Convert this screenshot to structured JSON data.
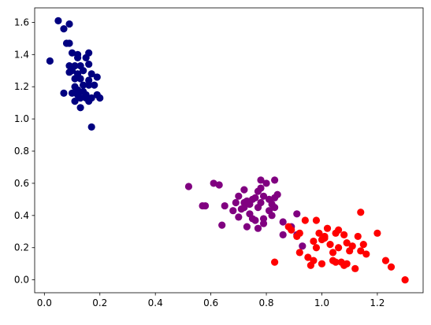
{
  "chart_data": {
    "type": "scatter",
    "title": "",
    "xlabel": "",
    "ylabel": "",
    "xlim": [
      -0.035,
      1.365
    ],
    "ylim": [
      -0.08,
      1.69
    ],
    "x_ticks": [
      0.0,
      0.2,
      0.4,
      0.6,
      0.8,
      1.0,
      1.2
    ],
    "x_tick_labels": [
      "0.0",
      "0.2",
      "0.4",
      "0.6",
      "0.8",
      "1.0",
      "1.2"
    ],
    "y_ticks": [
      0.0,
      0.2,
      0.4,
      0.6,
      0.8,
      1.0,
      1.2,
      1.4,
      1.6
    ],
    "y_tick_labels": [
      "0.0",
      "0.2",
      "0.4",
      "0.6",
      "0.8",
      "1.0",
      "1.2",
      "1.4",
      "1.6"
    ],
    "grid": false,
    "legend": "none",
    "series": [
      {
        "color": "#000080",
        "points": [
          [
            0.05,
            1.61
          ],
          [
            0.09,
            1.59
          ],
          [
            0.07,
            1.56
          ],
          [
            0.08,
            1.47
          ],
          [
            0.09,
            1.47
          ],
          [
            0.02,
            1.36
          ],
          [
            0.1,
            1.41
          ],
          [
            0.12,
            1.4
          ],
          [
            0.16,
            1.41
          ],
          [
            0.12,
            1.38
          ],
          [
            0.15,
            1.38
          ],
          [
            0.09,
            1.33
          ],
          [
            0.11,
            1.33
          ],
          [
            0.13,
            1.33
          ],
          [
            0.16,
            1.34
          ],
          [
            0.1,
            1.3
          ],
          [
            0.14,
            1.3
          ],
          [
            0.17,
            1.28
          ],
          [
            0.09,
            1.29
          ],
          [
            0.12,
            1.28
          ],
          [
            0.19,
            1.26
          ],
          [
            0.11,
            1.25
          ],
          [
            0.13,
            1.25
          ],
          [
            0.16,
            1.24
          ],
          [
            0.14,
            1.21
          ],
          [
            0.16,
            1.21
          ],
          [
            0.18,
            1.21
          ],
          [
            0.11,
            1.2
          ],
          [
            0.12,
            1.18
          ],
          [
            0.14,
            1.17
          ],
          [
            0.1,
            1.16
          ],
          [
            0.07,
            1.16
          ],
          [
            0.12,
            1.15
          ],
          [
            0.15,
            1.15
          ],
          [
            0.19,
            1.15
          ],
          [
            0.13,
            1.13
          ],
          [
            0.15,
            1.13
          ],
          [
            0.17,
            1.13
          ],
          [
            0.2,
            1.13
          ],
          [
            0.11,
            1.11
          ],
          [
            0.16,
            1.11
          ],
          [
            0.13,
            1.07
          ],
          [
            0.17,
            0.95
          ]
        ]
      },
      {
        "color": "#800080",
        "points": [
          [
            0.52,
            0.58
          ],
          [
            0.61,
            0.6
          ],
          [
            0.63,
            0.59
          ],
          [
            0.57,
            0.46
          ],
          [
            0.58,
            0.46
          ],
          [
            0.65,
            0.46
          ],
          [
            0.64,
            0.34
          ],
          [
            0.68,
            0.43
          ],
          [
            0.69,
            0.48
          ],
          [
            0.7,
            0.52
          ],
          [
            0.71,
            0.44
          ],
          [
            0.72,
            0.56
          ],
          [
            0.72,
            0.48
          ],
          [
            0.73,
            0.49
          ],
          [
            0.74,
            0.47
          ],
          [
            0.75,
            0.5
          ],
          [
            0.77,
            0.55
          ],
          [
            0.76,
            0.51
          ],
          [
            0.78,
            0.57
          ],
          [
            0.78,
            0.62
          ],
          [
            0.79,
            0.52
          ],
          [
            0.8,
            0.6
          ],
          [
            0.81,
            0.5
          ],
          [
            0.82,
            0.47
          ],
          [
            0.83,
            0.62
          ],
          [
            0.83,
            0.51
          ],
          [
            0.84,
            0.53
          ],
          [
            0.77,
            0.45
          ],
          [
            0.78,
            0.48
          ],
          [
            0.74,
            0.41
          ],
          [
            0.76,
            0.37
          ],
          [
            0.7,
            0.39
          ],
          [
            0.73,
            0.33
          ],
          [
            0.77,
            0.32
          ],
          [
            0.79,
            0.35
          ],
          [
            0.79,
            0.38
          ],
          [
            0.81,
            0.43
          ],
          [
            0.82,
            0.4
          ],
          [
            0.83,
            0.45
          ],
          [
            0.86,
            0.36
          ],
          [
            0.86,
            0.28
          ],
          [
            0.89,
            0.33
          ],
          [
            0.91,
            0.28
          ],
          [
            0.91,
            0.41
          ],
          [
            0.93,
            0.21
          ],
          [
            0.72,
            0.45
          ],
          [
            0.75,
            0.38
          ]
        ]
      },
      {
        "color": "#ff0000",
        "points": [
          [
            0.83,
            0.11
          ],
          [
            0.88,
            0.33
          ],
          [
            0.89,
            0.31
          ],
          [
            0.91,
            0.27
          ],
          [
            0.92,
            0.29
          ],
          [
            0.92,
            0.17
          ],
          [
            0.94,
            0.37
          ],
          [
            0.95,
            0.14
          ],
          [
            0.96,
            0.09
          ],
          [
            0.97,
            0.24
          ],
          [
            0.97,
            0.12
          ],
          [
            0.98,
            0.37
          ],
          [
            0.98,
            0.2
          ],
          [
            0.99,
            0.29
          ],
          [
            1.0,
            0.1
          ],
          [
            1.0,
            0.25
          ],
          [
            1.01,
            0.27
          ],
          [
            1.02,
            0.32
          ],
          [
            1.03,
            0.22
          ],
          [
            1.04,
            0.12
          ],
          [
            1.04,
            0.17
          ],
          [
            1.05,
            0.29
          ],
          [
            1.06,
            0.31
          ],
          [
            1.06,
            0.2
          ],
          [
            1.07,
            0.11
          ],
          [
            1.08,
            0.28
          ],
          [
            1.09,
            0.23
          ],
          [
            1.09,
            0.1
          ],
          [
            1.1,
            0.18
          ],
          [
            1.11,
            0.21
          ],
          [
            1.12,
            0.07
          ],
          [
            1.13,
            0.27
          ],
          [
            1.14,
            0.42
          ],
          [
            1.14,
            0.18
          ],
          [
            1.15,
            0.22
          ],
          [
            1.16,
            0.16
          ],
          [
            1.2,
            0.29
          ],
          [
            1.23,
            0.12
          ],
          [
            1.25,
            0.08
          ],
          [
            1.3,
            0.0
          ],
          [
            1.01,
            0.26
          ],
          [
            1.05,
            0.11
          ],
          [
            1.08,
            0.09
          ]
        ]
      }
    ]
  }
}
